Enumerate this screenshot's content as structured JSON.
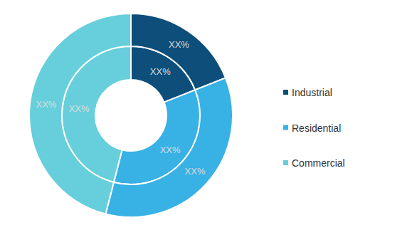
{
  "chart_data": {
    "type": "donut",
    "categories": [
      "Industrial",
      "Residential",
      "Commercial"
    ],
    "colors": [
      "#0d4f7a",
      "#38b1e5",
      "#66cfdb"
    ],
    "series": [
      {
        "values": [
          19,
          35,
          46
        ],
        "value_labels": [
          "XX%",
          "XX%",
          "XX%"
        ]
      },
      {
        "values": [
          19,
          35,
          46
        ],
        "value_labels": [
          "XX%",
          "XX%",
          "XX%"
        ]
      }
    ],
    "data_labels": true,
    "legend": "right"
  }
}
